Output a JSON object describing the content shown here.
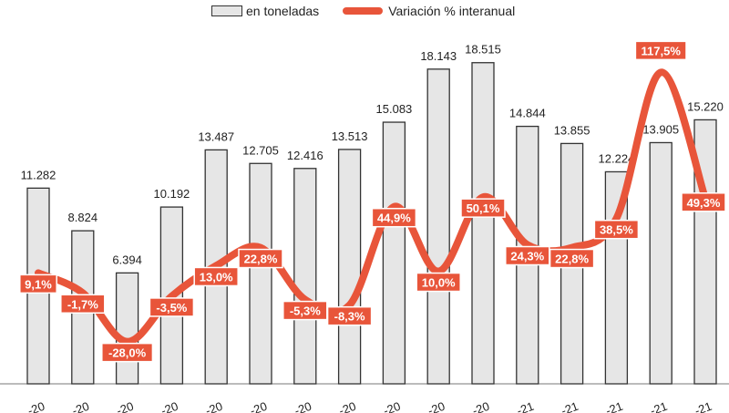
{
  "chart_data": {
    "type": "bar",
    "title": "",
    "xlabel": "",
    "ylabel": "",
    "categories": [
      "…-20",
      "…-20",
      "…-20",
      "…-20",
      "…-20",
      "…-20",
      "…-20",
      "…-20",
      "…-20",
      "…-20",
      "…-20",
      "…-21",
      "…-21",
      "…-21",
      "…-21",
      "…-21"
    ],
    "ylim": [
      0,
      19500
    ],
    "y2lim": [
      -40,
      130
    ],
    "series": [
      {
        "name": "en toneladas",
        "kind": "bar",
        "color": "#e6e6e6",
        "values": [
          11282,
          8824,
          6394,
          10192,
          13487,
          12705,
          12416,
          13513,
          15083,
          18143,
          18515,
          14844,
          13855,
          12224,
          13905,
          15220
        ],
        "labels": [
          "11.282",
          "8.824",
          "6.394",
          "10.192",
          "13.487",
          "12.705",
          "12.416",
          "13.513",
          "15.083",
          "18.143",
          "18.515",
          "14.844",
          "13.855",
          "12.224",
          "13.905",
          "15.220"
        ]
      },
      {
        "name": "Variación % interanual",
        "kind": "line",
        "axis": "secondary",
        "color": "#e8553a",
        "values": [
          9.1,
          -1.7,
          -28.0,
          -3.5,
          13.0,
          22.8,
          -5.3,
          -8.3,
          44.9,
          10.0,
          50.1,
          24.3,
          22.8,
          38.5,
          117.5,
          49.3
        ],
        "labels": [
          "9,1%",
          "-1,7%",
          "-28,0%",
          "-3,5%",
          "13,0%",
          "22,8%",
          "-5,3%",
          "-8,3%",
          "44,9%",
          "10,0%",
          "50,1%",
          "24,3%",
          "22,8%",
          "38,5%",
          "117,5%",
          "49,3%"
        ]
      }
    ],
    "legend_position": "top-center",
    "grid": false
  },
  "legend": {
    "bar_label": "en toneladas",
    "line_label": "Variación % interanual"
  }
}
